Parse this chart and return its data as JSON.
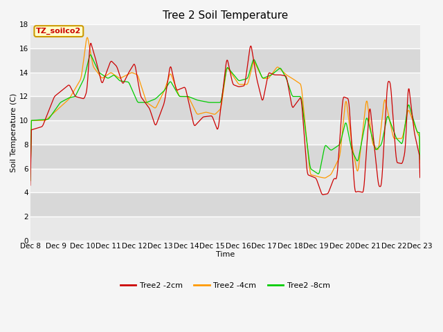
{
  "title": "Tree 2 Soil Temperature",
  "xlabel": "Time",
  "ylabel": "Soil Temperature (C)",
  "ylim": [
    0,
    18
  ],
  "yticks": [
    0,
    2,
    4,
    6,
    8,
    10,
    12,
    14,
    16,
    18
  ],
  "xtick_labels": [
    "Dec 8",
    "Dec 9",
    "Dec 10",
    "Dec 11",
    "Dec 12",
    "Dec 13",
    "Dec 14",
    "Dec 15",
    "Dec 16",
    "Dec 17",
    "Dec 18",
    "Dec 19",
    "Dec 20",
    "Dec 21",
    "Dec 22",
    "Dec 23"
  ],
  "legend_label": "TZ_soilco2",
  "series_labels": [
    "Tree2 -2cm",
    "Tree2 -4cm",
    "Tree2 -8cm"
  ],
  "colors": [
    "#cc0000",
    "#ff9900",
    "#00cc00"
  ],
  "background_color": "#f5f5f5",
  "plot_bg_alternating": [
    "#e8e8e8",
    "#d8d8d8"
  ],
  "grid_color": "#ffffff",
  "title_fontsize": 11,
  "label_fontsize": 8,
  "tick_fontsize": 7.5
}
